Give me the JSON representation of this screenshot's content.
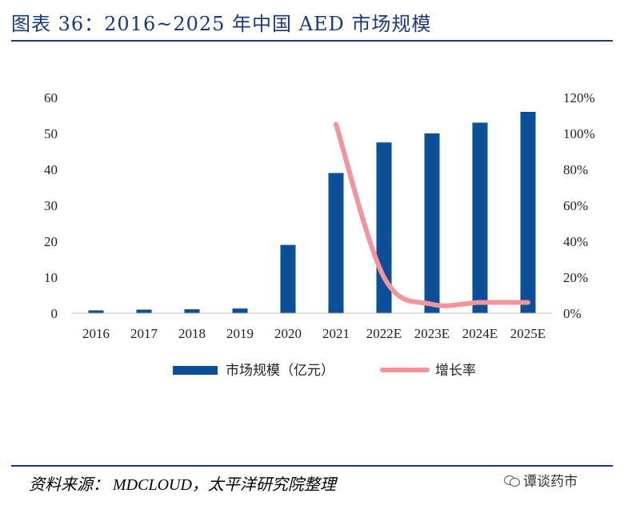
{
  "header": {
    "title": "图表 36：2016~2025 年中国 AED 市场规模"
  },
  "chart_data": {
    "type": "bar",
    "categories": [
      "2016",
      "2017",
      "2018",
      "2019",
      "2020",
      "2021",
      "2022E",
      "2023E",
      "2024E",
      "2025E"
    ],
    "series": [
      {
        "name": "市场规模（亿元）",
        "type": "bar",
        "axis": "left",
        "color": "#0b4f9a",
        "values": [
          0.8,
          1.0,
          1.1,
          1.3,
          19,
          39,
          47.5,
          50,
          53,
          56
        ]
      },
      {
        "name": "增长率",
        "type": "line",
        "axis": "right",
        "color": "#f6939a",
        "x": [
          "2021",
          "2022E",
          "2023E",
          "2024E",
          "2025E"
        ],
        "values": [
          1.05,
          0.2,
          0.05,
          0.06,
          0.06
        ]
      }
    ],
    "y_left": {
      "min": 0,
      "max": 60,
      "ticks": [
        0,
        10,
        20,
        30,
        40,
        50,
        60
      ]
    },
    "y_right": {
      "min": 0,
      "max": 1.2,
      "ticks": [
        "0%",
        "20%",
        "40%",
        "60%",
        "80%",
        "100%",
        "120%"
      ]
    },
    "legend": {
      "placement": "bottom"
    },
    "grid": false
  },
  "footer": {
    "source": "资料来源：  MDCLOUD，太平洋研究院整理",
    "watermark": "谭谈药市"
  }
}
